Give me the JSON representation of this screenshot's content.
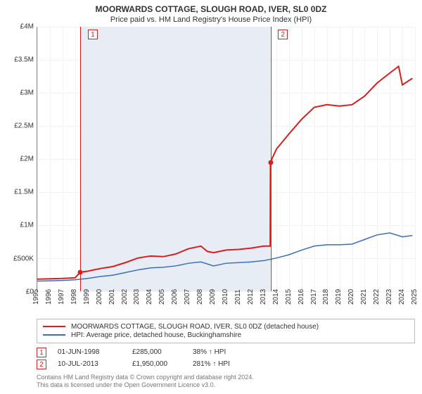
{
  "title": "MOORWARDS COTTAGE, SLOUGH ROAD, IVER, SL0 0DZ",
  "subtitle": "Price paid vs. HM Land Registry's House Price Index (HPI)",
  "chart": {
    "type": "line",
    "background_color": "#ffffff",
    "grid_color": "#f2f2f2",
    "shaded_color": "#e8edf5",
    "axis_color": "#888888",
    "label_fontsize": 10,
    "x_years": [
      1995,
      1996,
      1997,
      1998,
      1999,
      2000,
      2001,
      2002,
      2003,
      2004,
      2005,
      2006,
      2007,
      2008,
      2009,
      2010,
      2011,
      2012,
      2013,
      2014,
      2015,
      2016,
      2017,
      2018,
      2019,
      2020,
      2021,
      2022,
      2023,
      2024,
      2025
    ],
    "y_ticks_million": [
      0,
      0.5,
      1,
      1.5,
      2,
      2.5,
      3,
      3.5,
      4
    ],
    "y_tick_labels": [
      "£0",
      "£500K",
      "£1M",
      "£1.5M",
      "£2M",
      "£2.5M",
      "£3M",
      "£3.5M",
      "£4M"
    ],
    "ylim_million": [
      0,
      4
    ],
    "shaded_span_years": [
      1998.42,
      2013.52
    ],
    "series": [
      {
        "name": "property",
        "color": "#d81e1e",
        "line_width": 2,
        "points_year_value_million": [
          [
            1995,
            0.18
          ],
          [
            1996,
            0.185
          ],
          [
            1997,
            0.19
          ],
          [
            1998,
            0.2
          ],
          [
            1998.42,
            0.285
          ],
          [
            1999,
            0.3
          ],
          [
            2000,
            0.34
          ],
          [
            2001,
            0.37
          ],
          [
            2002,
            0.43
          ],
          [
            2003,
            0.5
          ],
          [
            2004,
            0.53
          ],
          [
            2005,
            0.52
          ],
          [
            2006,
            0.56
          ],
          [
            2007,
            0.64
          ],
          [
            2008,
            0.68
          ],
          [
            2008.5,
            0.6
          ],
          [
            2009,
            0.58
          ],
          [
            2010,
            0.62
          ],
          [
            2011,
            0.63
          ],
          [
            2012,
            0.65
          ],
          [
            2013,
            0.68
          ],
          [
            2013.5,
            0.68
          ],
          [
            2013.52,
            1.95
          ],
          [
            2014,
            2.15
          ],
          [
            2015,
            2.38
          ],
          [
            2016,
            2.6
          ],
          [
            2017,
            2.78
          ],
          [
            2018,
            2.82
          ],
          [
            2019,
            2.8
          ],
          [
            2020,
            2.82
          ],
          [
            2021,
            2.95
          ],
          [
            2022,
            3.15
          ],
          [
            2023,
            3.3
          ],
          [
            2023.7,
            3.4
          ],
          [
            2024,
            3.12
          ],
          [
            2024.8,
            3.22
          ]
        ]
      },
      {
        "name": "hpi",
        "color": "#3a6fb7",
        "line_width": 1.5,
        "points_year_value_million": [
          [
            1995,
            0.15
          ],
          [
            1996,
            0.155
          ],
          [
            1997,
            0.16
          ],
          [
            1998,
            0.17
          ],
          [
            1999,
            0.19
          ],
          [
            2000,
            0.22
          ],
          [
            2001,
            0.24
          ],
          [
            2002,
            0.28
          ],
          [
            2003,
            0.32
          ],
          [
            2004,
            0.35
          ],
          [
            2005,
            0.36
          ],
          [
            2006,
            0.38
          ],
          [
            2007,
            0.42
          ],
          [
            2008,
            0.44
          ],
          [
            2009,
            0.38
          ],
          [
            2010,
            0.42
          ],
          [
            2011,
            0.43
          ],
          [
            2012,
            0.44
          ],
          [
            2013,
            0.46
          ],
          [
            2014,
            0.5
          ],
          [
            2015,
            0.55
          ],
          [
            2016,
            0.62
          ],
          [
            2017,
            0.68
          ],
          [
            2018,
            0.7
          ],
          [
            2019,
            0.7
          ],
          [
            2020,
            0.71
          ],
          [
            2021,
            0.78
          ],
          [
            2022,
            0.85
          ],
          [
            2023,
            0.88
          ],
          [
            2024,
            0.82
          ],
          [
            2024.8,
            0.84
          ]
        ]
      }
    ],
    "markers": [
      {
        "num": "1",
        "year": 1998.42,
        "value_million": 0.285,
        "box_year_offset": 0.6
      },
      {
        "num": "2",
        "year": 2013.52,
        "value_million": 1.95,
        "box_year_offset": 0.6
      }
    ],
    "marker_border_color": "#d81e1e"
  },
  "legend": {
    "series1_label": "MOORWARDS COTTAGE, SLOUGH ROAD, IVER, SL0 0DZ (detached house)",
    "series1_color": "#d81e1e",
    "series2_label": "HPI: Average price, detached house, Buckinghamshire",
    "series2_color": "#3a6fb7"
  },
  "events": [
    {
      "num": "1",
      "date": "01-JUN-1998",
      "price": "£285,000",
      "pct": "38% ↑ HPI"
    },
    {
      "num": "2",
      "date": "10-JUL-2013",
      "price": "£1,950,000",
      "pct": "281% ↑ HPI"
    }
  ],
  "copyright": {
    "line1": "Contains HM Land Registry data © Crown copyright and database right 2024.",
    "line2": "This data is licensed under the Open Government Licence v3.0."
  }
}
